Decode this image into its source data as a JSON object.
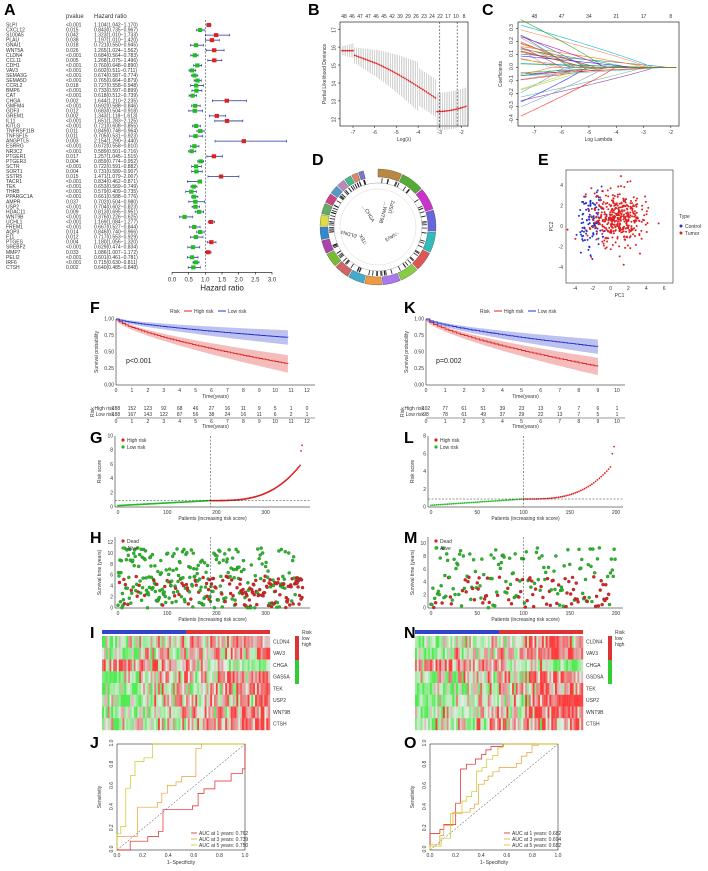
{
  "panel_labels": [
    "A",
    "B",
    "C",
    "D",
    "E",
    "F",
    "K",
    "G",
    "L",
    "H",
    "M",
    "I",
    "N",
    "J",
    "O"
  ],
  "forest": {
    "headers": {
      "pvalue": "pvalue",
      "hr": "Hazard ratio"
    },
    "xlabel": "Hazard ratio",
    "xticks": [
      "0.0",
      "0.5",
      "1.0",
      "1.5",
      "2.0",
      "2.5",
      "3.0"
    ],
    "rows": [
      [
        "SLPI",
        "<0.001",
        "1.104(1.042−1.170)",
        1.104,
        1.042,
        1.17
      ],
      [
        "CXCL12",
        "0.015",
        "0.843(0.735−0.967)",
        0.843,
        0.735,
        0.967
      ],
      [
        "S100A5",
        "0.042",
        "1.323(1.010−1.733)",
        1.323,
        1.01,
        1.733
      ],
      [
        "PLAU",
        "0.038",
        "1.197(1.010−1.420)",
        1.197,
        1.01,
        1.42
      ],
      [
        "GNAI1",
        "0.018",
        "0.721(0.550−0.945)",
        0.721,
        0.55,
        0.945
      ],
      [
        "WNT5A",
        "0.026",
        "1.265(1.024−1.562)",
        1.265,
        1.024,
        1.562
      ],
      [
        "CLDN4",
        "<0.001",
        "0.684(0.564−0.783)",
        0.684,
        0.564,
        0.783
      ],
      [
        "CCL11",
        "0.005",
        "1.268(1.075−1.496)",
        1.268,
        1.075,
        1.496
      ],
      [
        "CDH1",
        "<0.001",
        "0.760(0.648−0.890)",
        0.76,
        0.648,
        0.89
      ],
      [
        "VAV3",
        "<0.001",
        "0.602(0.511−0.711)",
        0.602,
        0.511,
        0.711
      ],
      [
        "SEMA3G",
        "<0.001",
        "0.674(0.587−0.774)",
        0.674,
        0.587,
        0.774
      ],
      [
        "SEMA5D",
        "<0.001",
        "0.765(0.664−0.879)",
        0.765,
        0.664,
        0.879
      ],
      [
        "CCRL2",
        "0.018",
        "0.727(0.558−0.948)",
        0.727,
        0.558,
        0.948
      ],
      [
        "BMP6",
        "<0.001",
        "0.733(0.597−0.899)",
        0.733,
        0.597,
        0.899
      ],
      [
        "CAT",
        "<0.001",
        "0.618(0.512−0.739)",
        0.618,
        0.512,
        0.739
      ],
      [
        "CHGA",
        "0.002",
        "1.644(1.210−2.235)",
        1.644,
        1.21,
        2.235
      ],
      [
        "GMFM4",
        "<0.001",
        "0.692(0.588−0.846)",
        0.692,
        0.588,
        0.846
      ],
      [
        "GDF3",
        "0.012",
        "0.683(0.504−0.918)",
        0.683,
        0.504,
        0.918
      ],
      [
        "GREM1",
        "0.002",
        "1.343(1.118−1.613)",
        1.343,
        1.118,
        1.613
      ],
      [
        "IL11",
        "<0.001",
        "1.651(1.283−2.125)",
        1.651,
        1.283,
        2.125
      ],
      [
        "KITLG",
        "<0.001",
        "0.721(0.608−0.855)",
        0.721,
        0.608,
        0.855
      ],
      [
        "TNFRSF11B",
        "0.011",
        "0.849(0.748−0.964)",
        0.849,
        0.748,
        0.964
      ],
      [
        "TNFSF15",
        "0.011",
        "0.705(0.531−0.923)",
        0.705,
        0.531,
        0.923
      ],
      [
        "ANGPTL5",
        "0.003",
        "2.154(1.290−3.440)",
        2.154,
        1.29,
        3.44
      ],
      [
        "ESRRG",
        "<0.001",
        "0.672(0.558−0.810)",
        0.672,
        0.558,
        0.81
      ],
      [
        "NR3C2",
        "<0.001",
        "0.589(0.501−0.716)",
        0.589,
        0.501,
        0.716
      ],
      [
        "PTGER1",
        "0.017",
        "1.257(1.045−1.515)",
        1.257,
        1.045,
        1.515
      ],
      [
        "PTGER3",
        "0.004",
        "0.859(0.774−0.952)",
        0.859,
        0.774,
        0.952
      ],
      [
        "SCTR",
        "<0.001",
        "0.722(0.591−0.882)",
        0.722,
        0.591,
        0.882
      ],
      [
        "SORT1",
        "0.004",
        "0.731(0.589−0.907)",
        0.731,
        0.589,
        0.907
      ],
      [
        "SSTR5",
        "0.015",
        "1.471(1.079−2.007)",
        1.471,
        1.079,
        2.007
      ],
      [
        "TACR1",
        "<0.001",
        "0.834(0.462−0.871)",
        0.834,
        0.462,
        0.871
      ],
      [
        "TEK",
        "<0.001",
        "0.653(0.569−0.749)",
        0.653,
        0.569,
        0.749
      ],
      [
        "THRB",
        "<0.001",
        "0.579(0.409−0.735)",
        0.579,
        0.409,
        0.735
      ],
      [
        "PPARGC1A",
        "<0.001",
        "0.661(0.588−0.776)",
        0.661,
        0.588,
        0.776
      ],
      [
        "AMPR",
        "0.037",
        "0.702(0.504−0.980)",
        0.702,
        0.504,
        0.98
      ],
      [
        "USP2",
        "<0.001",
        "0.704(0.602−0.823)",
        0.704,
        0.602,
        0.823
      ],
      [
        "HDAC11",
        "0.009",
        "0.813(0.695−0.951)",
        0.813,
        0.695,
        0.951
      ],
      [
        "WNT9B",
        "<0.001",
        "0.376(0.226−0.625)",
        0.376,
        0.226,
        0.625
      ],
      [
        "UCHL1",
        "<0.001",
        "1.169(1.084−1.277)",
        1.169,
        1.084,
        1.277
      ],
      [
        "FREM1",
        "<0.001",
        "0.667(0.527−0.844)",
        0.667,
        0.527,
        0.844
      ],
      [
        "AQP3",
        "0.014",
        "0.846(0.740−0.966)",
        0.846,
        0.74,
        0.966
      ],
      [
        "F11",
        "0.012",
        "0.717(0.553−0.929)",
        0.717,
        0.553,
        0.929
      ],
      [
        "PTGES",
        "0.004",
        "1.180(1.056−1.320)",
        1.18,
        1.056,
        1.32
      ],
      [
        "SREBF2",
        "<0.001",
        "0.629(0.474−0.834)",
        0.629,
        0.474,
        0.834
      ],
      [
        "MMP7",
        "0.033",
        "1.086(1.007−1.172)",
        1.086,
        1.007,
        1.172
      ],
      [
        "PELI2",
        "<0.001",
        "0.601(0.461−0.781)",
        0.601,
        0.461,
        0.781
      ],
      [
        "IRF6",
        "<0.001",
        "0.715(0.630−0.811)",
        0.715,
        0.63,
        0.811
      ],
      [
        "CTSH",
        "0.002",
        "0.640(0.485−0.848)",
        0.64,
        0.485,
        0.848
      ]
    ]
  },
  "lasso_cv": {
    "xlabel": "Log(λ)",
    "ylabel": "Partial Likelihood Deviance",
    "top_ticks": [
      "48",
      "46",
      "47",
      "47",
      "46",
      "45",
      "42",
      "39",
      "29",
      "26",
      "23",
      "24",
      "22",
      "17",
      "10",
      "8"
    ],
    "xticks": [
      "-7",
      "-6",
      "-5",
      "-4",
      "-3",
      "-2"
    ],
    "yticks": [
      "12",
      "13",
      "14",
      "15",
      "16",
      "17"
    ]
  },
  "lasso_coef": {
    "xlabel": "Log Lambda",
    "ylabel": "Coefficients",
    "top_ticks": [
      "48",
      "47",
      "34",
      "21",
      "17",
      "8"
    ],
    "xticks": [
      "-7",
      "-6",
      "-5",
      "-4",
      "-3",
      "-2"
    ],
    "yticks": [
      "-0.4",
      "-0.3",
      "-0.2",
      "-0.1",
      "0.0",
      "0.1",
      "0.2",
      "0.3"
    ]
  },
  "circos": {
    "gene_labels": [
      "CHGA",
      "WNT9B",
      "VAV3",
      "CLDN4",
      "TEK",
      "USP2"
    ]
  },
  "pca": {
    "xlabel": "PC1",
    "ylabel": "PC2",
    "legend_title": "Type",
    "legend": [
      "Control",
      "Tumor"
    ],
    "xticks": [
      "-4",
      "-2",
      "0",
      "2",
      "4",
      "6"
    ],
    "yticks": [
      "-4",
      "-2",
      "0",
      "2",
      "4"
    ],
    "colors": {
      "control": "#2233cc",
      "tumor": "#dd2222"
    }
  },
  "km_left": {
    "legend_title": "Risk",
    "legend": [
      "High risk",
      "Low risk"
    ],
    "pvalue": "p<0.001",
    "ylabel": "Survival probability",
    "xlabel": "Time(years)",
    "xticks": [
      "0",
      "1",
      "2",
      "3",
      "4",
      "5",
      "6",
      "7",
      "8",
      "9",
      "10",
      "11",
      "12"
    ],
    "yticks": [
      "0.00",
      "0.25",
      "0.50",
      "0.75",
      "1.00"
    ],
    "risk_table": {
      "label": "Risk",
      "high_label": "High risk",
      "low_label": "Low risk",
      "high": [
        "188",
        "152",
        "123",
        "92",
        "68",
        "46",
        "27",
        "16",
        "11",
        "9",
        "5",
        "1",
        "0"
      ],
      "low": [
        "188",
        "167",
        "143",
        "122",
        "87",
        "56",
        "38",
        "24",
        "16",
        "11",
        "6",
        "2",
        "1"
      ],
      "xlabel": "Time(years)"
    }
  },
  "km_right": {
    "legend_title": "Risk",
    "legend": [
      "High risk",
      "Low risk"
    ],
    "pvalue": "p=0.002",
    "ylabel": "Survival probability",
    "xlabel": "Time(years)",
    "xticks": [
      "0",
      "1",
      "2",
      "3",
      "4",
      "5",
      "6",
      "7",
      "8",
      "9",
      "10"
    ],
    "yticks": [
      "0.00",
      "0.25",
      "0.50",
      "0.75",
      "1.00"
    ],
    "risk_table": {
      "label": "Risk",
      "high_label": "High risk",
      "low_label": "Low risk",
      "high": [
        "102",
        "77",
        "61",
        "51",
        "39",
        "23",
        "13",
        "9",
        "7",
        "6",
        "1"
      ],
      "low": [
        "98",
        "78",
        "61",
        "49",
        "37",
        "29",
        "22",
        "13",
        "7",
        "5",
        "1"
      ],
      "xlabel": "Time(years)"
    }
  },
  "risk_left": {
    "legend": [
      "High risk",
      "Low risk"
    ],
    "ylabel": "Risk score",
    "xlabel": "Patients (increasing risk score)",
    "xticks": [
      "0",
      "100",
      "200",
      "300"
    ],
    "yticks": [
      "0",
      "2",
      "4",
      "6",
      "8",
      "10"
    ]
  },
  "risk_right": {
    "legend": [
      "High risk",
      "Low risk"
    ],
    "ylabel": "Risk score",
    "xlabel": "Patients (increasing risk score)",
    "xticks": [
      "0",
      "50",
      "100",
      "150",
      "200"
    ],
    "yticks": [
      "0",
      "2",
      "4",
      "6",
      "8"
    ]
  },
  "surv_left": {
    "legend": [
      "Dead",
      "Alive"
    ],
    "ylabel": "Survival time (years)",
    "xlabel": "Patients (increasing risk score)",
    "xticks": [
      "0",
      "100",
      "200",
      "300"
    ],
    "yticks": [
      "0",
      "2",
      "4",
      "6",
      "8",
      "10",
      "12"
    ]
  },
  "surv_right": {
    "legend": [
      "Dead",
      "Alive"
    ],
    "ylabel": "Survival time (years)",
    "xlabel": "Patients (increasing risk score)",
    "xticks": [
      "0",
      "50",
      "100",
      "150",
      "200"
    ],
    "yticks": [
      "0",
      "2",
      "4",
      "6",
      "8",
      "10"
    ]
  },
  "heat_left": {
    "genes": [
      "CLDN4",
      "VAV3",
      "CHGA",
      "GAS5A",
      "TEK",
      "USP2",
      "WNT9B",
      "CTSH"
    ],
    "legend_title": "Risk",
    "legend": [
      "low",
      "high"
    ]
  },
  "heat_right": {
    "genes": [
      "CLDN4",
      "VAV3",
      "CHGA",
      "GSDSA",
      "TEK",
      "USP2",
      "WNT9B",
      "CTSH"
    ],
    "legend_title": "Risk",
    "legend": [
      "low",
      "high"
    ]
  },
  "roc_left": {
    "xlabel": "1−Specificity",
    "ylabel": "Sensitivity",
    "xticks": [
      "0.0",
      "0.2",
      "0.4",
      "0.6",
      "0.8",
      "1.0"
    ],
    "yticks": [
      "0.0",
      "0.2",
      "0.4",
      "0.6",
      "0.8",
      "1.0"
    ],
    "legend": [
      "AUC at 1 years: 0.762",
      "AUC at 3 years: 0.739",
      "AUC at 5 years: 0.750"
    ]
  },
  "roc_right": {
    "xlabel": "1−Specificity",
    "ylabel": "Sensitivity",
    "xticks": [
      "0.0",
      "0.2",
      "0.4",
      "0.6",
      "0.8",
      "1.0"
    ],
    "yticks": [
      "0.0",
      "0.2",
      "0.4",
      "0.6",
      "0.8",
      "1.0"
    ],
    "legend": [
      "AUC at 1 years: 0.682",
      "AUC at 3 years: 0.694",
      "AUC at 5 years: 0.682"
    ]
  },
  "colors": {
    "red": "#dd2222",
    "blue": "#2233cc",
    "green": "#22bb22",
    "orange": "#e8a030",
    "yellow": "#c8c820"
  }
}
